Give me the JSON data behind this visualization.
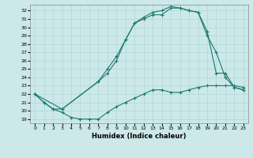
{
  "xlabel": "Humidex (Indice chaleur)",
  "bg_color": "#cce8e8",
  "line_color": "#1a7a6e",
  "xlim": [
    -0.5,
    23.5
  ],
  "ylim": [
    18.5,
    32.7
  ],
  "xticks": [
    0,
    1,
    2,
    3,
    4,
    5,
    6,
    7,
    8,
    9,
    10,
    11,
    12,
    13,
    14,
    15,
    16,
    17,
    18,
    19,
    20,
    21,
    22,
    23
  ],
  "yticks": [
    19,
    20,
    21,
    22,
    23,
    24,
    25,
    26,
    27,
    28,
    29,
    30,
    31,
    32
  ],
  "line1_x": [
    0,
    1,
    2,
    3,
    4,
    5,
    6,
    7,
    8,
    9,
    10,
    11,
    12,
    13,
    14,
    15,
    16,
    17,
    18,
    19,
    20,
    21,
    22,
    23
  ],
  "line1_y": [
    22.0,
    21.0,
    20.2,
    19.8,
    19.2,
    19.0,
    19.0,
    19.0,
    19.8,
    20.5,
    21.0,
    21.5,
    22.0,
    22.5,
    22.5,
    22.2,
    22.2,
    22.5,
    22.8,
    23.0,
    23.0,
    23.0,
    23.0,
    22.8
  ],
  "line2_x": [
    0,
    1,
    2,
    3,
    7,
    8,
    9,
    10,
    11,
    12,
    13,
    14,
    15,
    16,
    17,
    18,
    19,
    20,
    21,
    22,
    23
  ],
  "line2_y": [
    22.0,
    21.0,
    20.2,
    20.2,
    23.5,
    25.0,
    26.5,
    28.5,
    30.5,
    31.0,
    31.5,
    31.5,
    32.3,
    32.3,
    32.0,
    31.8,
    29.0,
    27.0,
    24.0,
    22.8,
    22.5
  ],
  "line3_x": [
    0,
    3,
    7,
    8,
    9,
    10,
    11,
    12,
    13,
    14,
    15,
    16,
    17,
    18,
    19,
    20,
    21,
    22,
    23
  ],
  "line3_y": [
    22.0,
    20.2,
    23.5,
    24.5,
    26.0,
    28.5,
    30.5,
    31.2,
    31.8,
    32.0,
    32.5,
    32.3,
    32.0,
    31.8,
    29.5,
    24.5,
    24.5,
    22.8,
    22.5
  ]
}
